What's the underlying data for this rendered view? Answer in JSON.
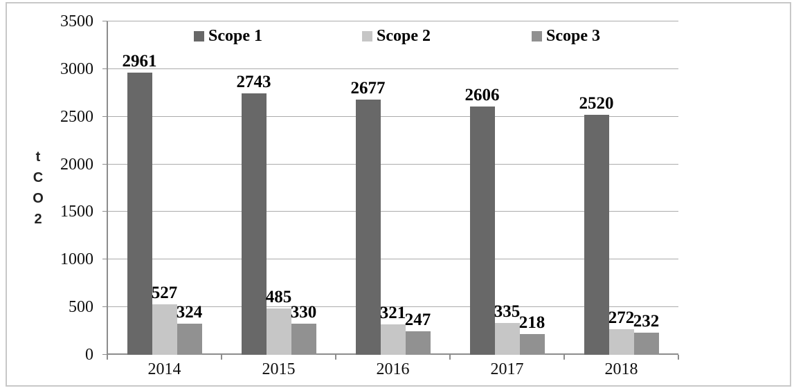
{
  "figure": {
    "border_color": "#c8c8c8",
    "background": "#ffffff",
    "axis_color": "#8c8c8c",
    "grid_color": "#ababab",
    "text_color": "#000000"
  },
  "chart_data": {
    "type": "bar",
    "title": "",
    "xlabel": "",
    "ylabel": "t\nC\nO\n2",
    "categories": [
      "2014",
      "2015",
      "2016",
      "2017",
      "2018"
    ],
    "series": [
      {
        "name": "Scope 1",
        "color": "#686868",
        "values": [
          2961,
          2743,
          2677,
          2606,
          2520
        ]
      },
      {
        "name": "Scope 2",
        "color": "#c6c6c6",
        "values": [
          527,
          485,
          321,
          335,
          272
        ]
      },
      {
        "name": "Scope 3",
        "color": "#919191",
        "values": [
          324,
          330,
          247,
          218,
          232
        ]
      }
    ],
    "ylim": [
      0,
      3500
    ],
    "y_ticks": [
      0,
      500,
      1000,
      1500,
      2000,
      2500,
      3000,
      3500
    ],
    "grid": true,
    "legend_position": "top",
    "value_labels": true
  }
}
